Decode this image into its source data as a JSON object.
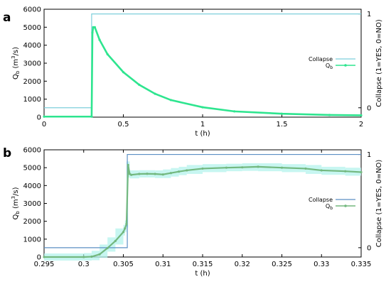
{
  "colors": {
    "collapse_a": "#7ecfdc",
    "qb_a": "#2ee58f",
    "collapse_b": "#5c8fc4",
    "qb_b": "#73b87f",
    "qb_b_scatter": "#b4f3ec"
  },
  "chart_data": [
    {
      "panel": "a",
      "type": "line",
      "xlabel": "t (h)",
      "ylabel": "Q_b (m^3/s)",
      "ylabel_main": "Q",
      "ylabel_sub": "b",
      "ylabel_tail": " (m",
      "ylabel_sup": "3",
      "ylabel_end": "/s)",
      "y2label": "Collapse (1=YES, 0=NO)",
      "xlim": [
        0,
        2
      ],
      "ylim": [
        0,
        6000
      ],
      "y2lim": [
        -0.1,
        1.05
      ],
      "xticks": [
        "0",
        "0.5",
        "1",
        "1.5",
        "2"
      ],
      "xtick_values": [
        0,
        0.5,
        1,
        1.5,
        2
      ],
      "yticks": [
        "0",
        "1000",
        "2000",
        "3000",
        "4000",
        "5000",
        "6000"
      ],
      "ytick_values": [
        0,
        1000,
        2000,
        3000,
        4000,
        5000,
        6000
      ],
      "y2ticks": [
        "0",
        "1"
      ],
      "y2tick_values": [
        0,
        1
      ],
      "grid": false,
      "legend_position": "right",
      "legend": [
        "Collapse",
        "Q_b"
      ],
      "legend_collapse": "Collapse",
      "legend_qb_main": "Q",
      "legend_qb_sub": "b",
      "series": [
        {
          "name": "Collapse",
          "axis": "y2",
          "x": [
            0,
            0.3,
            0.3,
            2
          ],
          "y": [
            0,
            0,
            1,
            1
          ]
        },
        {
          "name": "Q_b",
          "axis": "y1",
          "x": [
            0,
            0.3,
            0.305,
            0.31,
            0.32,
            0.35,
            0.4,
            0.5,
            0.6,
            0.7,
            0.8,
            1.0,
            1.2,
            1.5,
            1.8,
            2.0
          ],
          "y": [
            30,
            30,
            4700,
            5000,
            5000,
            4300,
            3500,
            2500,
            1800,
            1300,
            950,
            550,
            320,
            190,
            120,
            100
          ]
        }
      ]
    },
    {
      "panel": "b",
      "type": "line",
      "xlabel": "t (h)",
      "ylabel": "Q_b (m^3/s)",
      "ylabel_main": "Q",
      "ylabel_sub": "b",
      "ylabel_tail": " (m",
      "ylabel_sup": "3",
      "ylabel_end": "/s)",
      "y2label": "Collapse (1=YES, 0=NO)",
      "xlim": [
        0.295,
        0.335
      ],
      "ylim": [
        0,
        6000
      ],
      "y2lim": [
        -0.1,
        1.05
      ],
      "xticks": [
        "0.295",
        "0.3",
        "0.305",
        "0.31",
        "0.315",
        "0.32",
        "0.325",
        "0.33",
        "0.335"
      ],
      "xtick_values": [
        0.295,
        0.3,
        0.305,
        0.31,
        0.315,
        0.32,
        0.325,
        0.33,
        0.335
      ],
      "yticks": [
        "0",
        "1000",
        "2000",
        "3000",
        "4000",
        "5000",
        "6000"
      ],
      "ytick_values": [
        0,
        1000,
        2000,
        3000,
        4000,
        5000,
        6000
      ],
      "y2ticks": [
        "0",
        "1"
      ],
      "y2tick_values": [
        0,
        1
      ],
      "grid": false,
      "legend_position": "right",
      "legend": [
        "Collapse",
        "Q_b"
      ],
      "legend_collapse": "Collapse",
      "legend_qb_main": "Q",
      "legend_qb_sub": "b",
      "series": [
        {
          "name": "Collapse",
          "axis": "y2",
          "x": [
            0.295,
            0.3055,
            0.3055,
            0.335
          ],
          "y": [
            0,
            0,
            1,
            1
          ]
        },
        {
          "name": "Q_b",
          "axis": "y1",
          "x": [
            0.295,
            0.3,
            0.301,
            0.302,
            0.303,
            0.304,
            0.305,
            0.3052,
            0.3054,
            0.3056,
            0.3058,
            0.306,
            0.307,
            0.308,
            0.309,
            0.31,
            0.311,
            0.312,
            0.313,
            0.315,
            0.318,
            0.32,
            0.322,
            0.325,
            0.328,
            0.33,
            0.333,
            0.335
          ],
          "y": [
            0,
            0,
            20,
            150,
            500,
            900,
            1400,
            1600,
            1850,
            5150,
            4650,
            4600,
            4650,
            4660,
            4650,
            4620,
            4700,
            4780,
            4850,
            4950,
            5000,
            5020,
            5050,
            5000,
            4950,
            4850,
            4800,
            4750
          ]
        }
      ]
    }
  ]
}
